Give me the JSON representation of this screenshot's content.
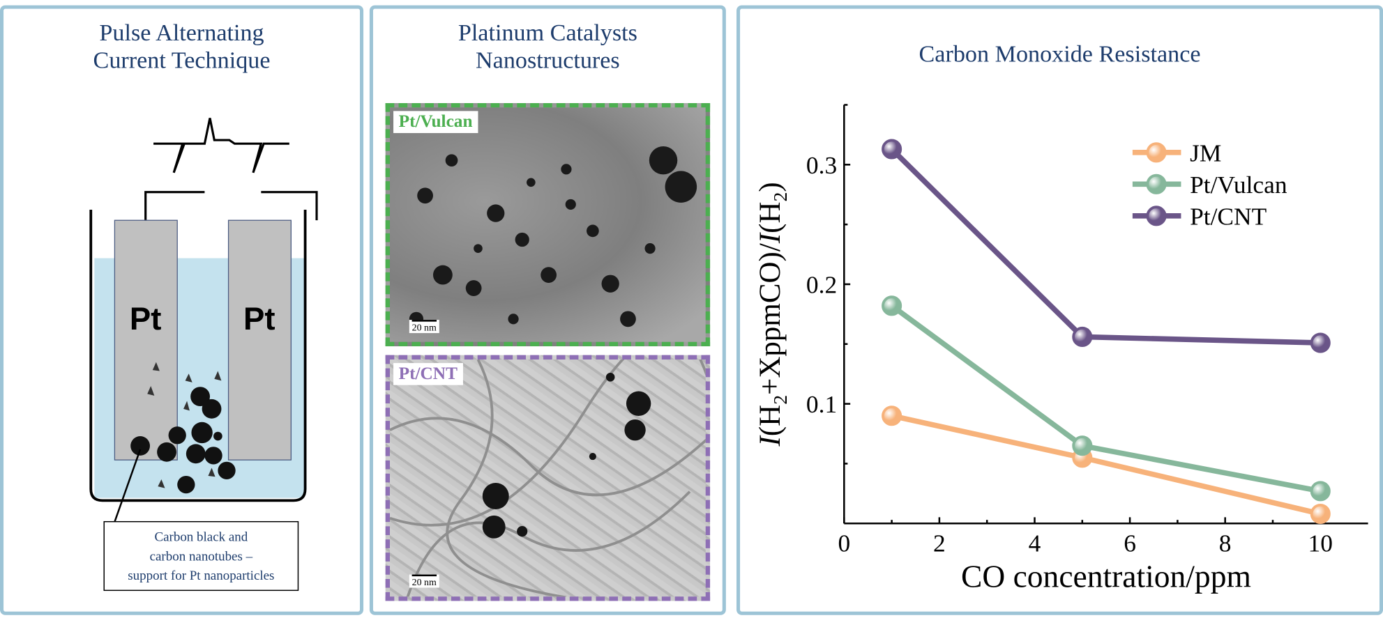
{
  "left_panel": {
    "title_line1": "Pulse Alternating",
    "title_line2": "Current Technique",
    "electrode_left": "Pt",
    "electrode_right": "Pt",
    "caption_line1": "Carbon black and",
    "caption_line2": "carbon nanotubes –",
    "caption_line3": "support for Pt nanoparticles",
    "colors": {
      "electrolyte": "#c4e2ee",
      "electrode": "#c0c0c0",
      "title": "#1d3c6c"
    }
  },
  "middle_panel": {
    "title_line1": "Platinum Catalysts",
    "title_line2": "Nanostructures",
    "images": [
      {
        "label": "Pt/Vulcan",
        "scale_bar": "20 nm",
        "color": "#4caf50"
      },
      {
        "label": "Pt/CNT",
        "scale_bar": "20 nm",
        "color": "#8e6fb5"
      }
    ]
  },
  "right_panel": {
    "title": "Carbon Monoxide Resistance"
  },
  "chart_data": {
    "type": "line",
    "title": "Carbon Monoxide Resistance",
    "xlabel": "CO concentration/ppm",
    "ylabel": "I(H2+XppmCO)/I(H2)",
    "xlim": [
      0,
      11
    ],
    "ylim": [
      0,
      0.35
    ],
    "xticks": [
      "0",
      "2",
      "4",
      "6",
      "8",
      "10"
    ],
    "yticks": [
      "0.1",
      "0.2",
      "0.3"
    ],
    "grid": false,
    "legend_position": "top-right",
    "x": [
      1,
      5,
      10
    ],
    "series": [
      {
        "name": "JM",
        "values": [
          0.09,
          0.055,
          0.008
        ],
        "color": "#f7b27a"
      },
      {
        "name": "Pt/Vulcan",
        "values": [
          0.182,
          0.065,
          0.027
        ],
        "color": "#86b79b"
      },
      {
        "name": "Pt/CNT",
        "values": [
          0.313,
          0.156,
          0.151
        ],
        "color": "#6a5588"
      }
    ]
  }
}
